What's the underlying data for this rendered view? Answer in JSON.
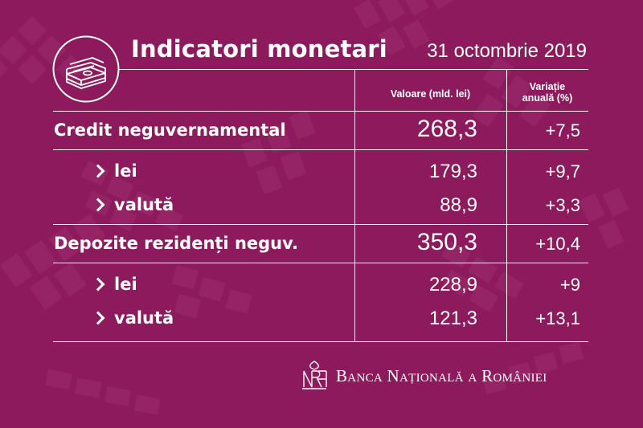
{
  "header": {
    "title": "Indicatori monetari",
    "date": "31 octombrie 2019",
    "icon": "money-stack-icon"
  },
  "columns": {
    "value_header": "Valoare (mld. lei)",
    "change_header_line1": "Variație",
    "change_header_line2": "anuală (%)"
  },
  "rows": [
    {
      "label": "Credit neguvernamental",
      "value": "268,3",
      "change": "+7,5"
    },
    {
      "label": "lei",
      "value": "179,3",
      "change": "+9,7"
    },
    {
      "label": "valută",
      "value": "88,9",
      "change": "+3,3"
    },
    {
      "label": "Depozite rezidenți neguv.",
      "value": "350,3",
      "change": "+10,4"
    },
    {
      "label": "lei",
      "value": "228,9",
      "change": "+9"
    },
    {
      "label": "valută",
      "value": "121,3",
      "change": "+13,1"
    }
  ],
  "footer": {
    "bank_name": "Banca Națională a României",
    "logo_icon": "bnr-monogram-icon"
  },
  "colors": {
    "background": "#8c1a5c",
    "pattern": "#9c3370",
    "text": "#ffffff"
  }
}
